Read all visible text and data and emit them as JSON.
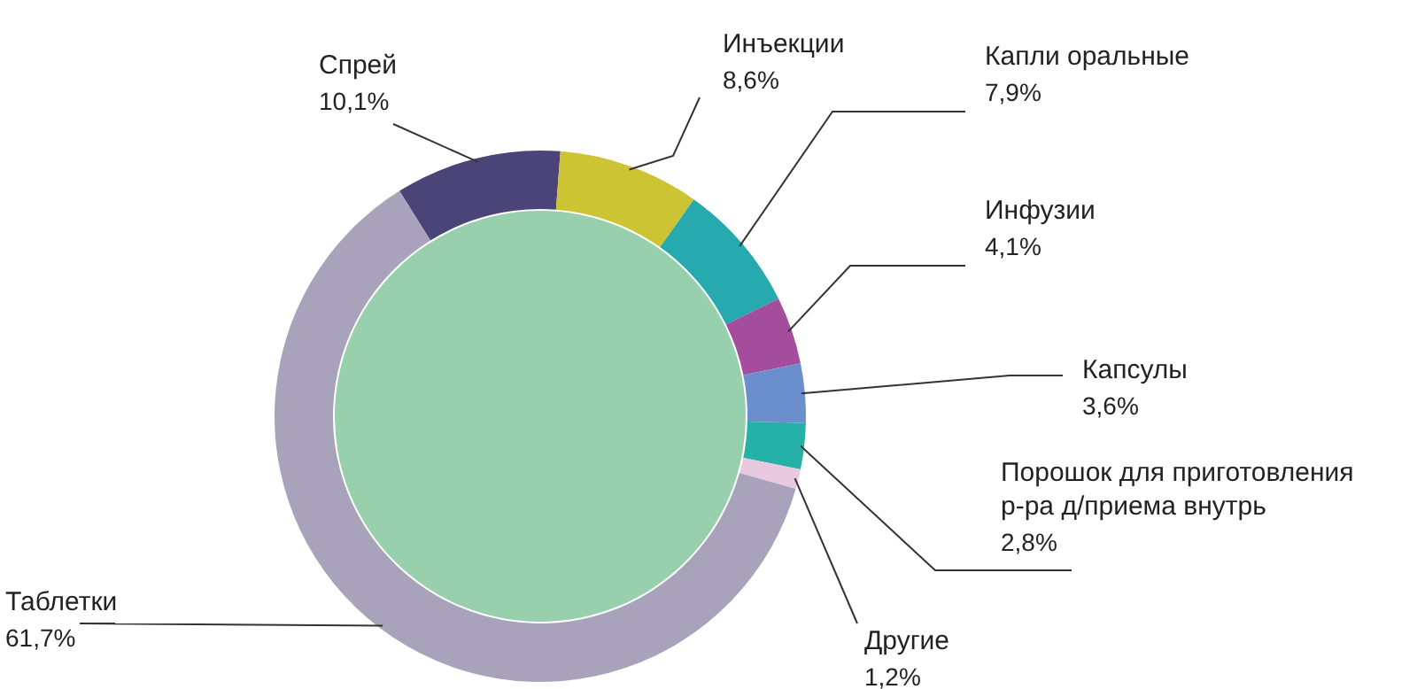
{
  "chart_data": {
    "type": "donut",
    "categories": [
      "Спрей",
      "Инъекции",
      "Капли оральные",
      "Инфузии",
      "Капсулы",
      "Порошок для приготовления р-ра д/приема внутрь",
      "Другие",
      "Таблетки"
    ],
    "values": [
      10.1,
      8.6,
      7.9,
      4.1,
      3.6,
      2.8,
      1.2,
      61.7
    ],
    "value_labels": [
      "10,1%",
      "8,6%",
      "7,9%",
      "4,1%",
      "3,6%",
      "2,8%",
      "1,2%",
      "61,7%"
    ],
    "colors": [
      "#4b4478",
      "#cdc433",
      "#26aab0",
      "#a34d9c",
      "#6b8fcd",
      "#25b0a8",
      "#e8c9df",
      "#a8a3ba"
    ],
    "legend": false
  }
}
